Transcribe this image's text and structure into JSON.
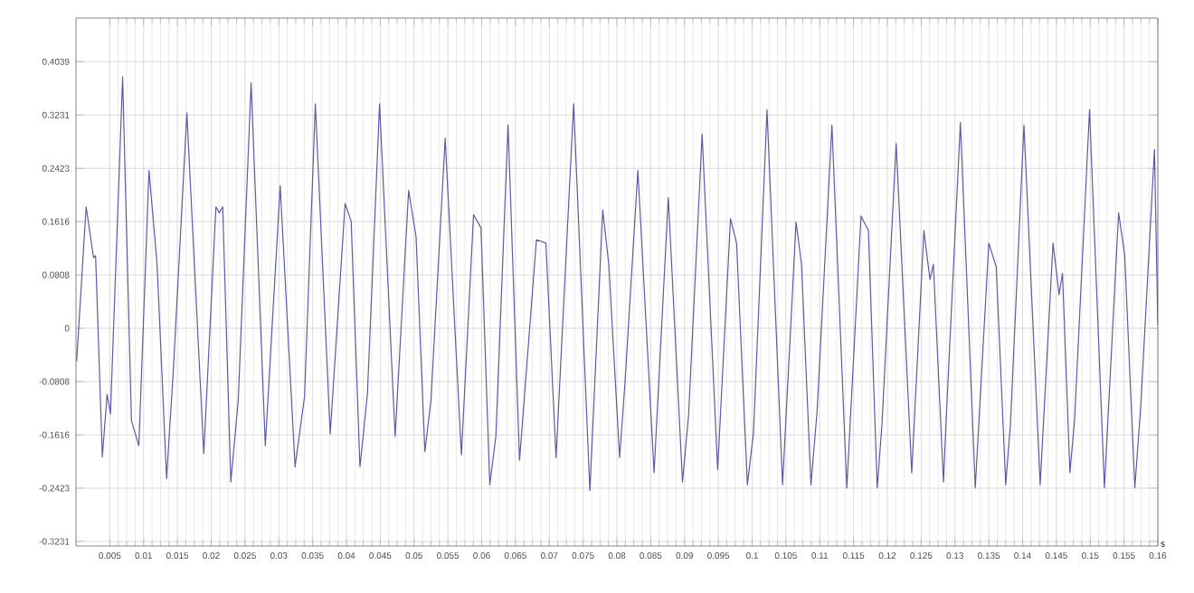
{
  "chart_data": {
    "type": "line",
    "xlabel": "s",
    "xlim": [
      0,
      0.16
    ],
    "ylim": [
      -0.33,
      0.47
    ],
    "xticks": [
      0.005,
      0.01,
      0.015,
      0.02,
      0.025,
      0.03,
      0.035,
      0.04,
      0.045,
      0.05,
      0.055,
      0.06,
      0.065,
      0.07,
      0.075,
      0.08,
      0.085,
      0.09,
      0.095,
      0.1,
      0.105,
      0.11,
      0.115,
      0.12,
      0.125,
      0.13,
      0.135,
      0.14,
      0.145,
      0.15,
      0.155,
      0.16
    ],
    "yticks": [
      -0.3231,
      -0.2423,
      -0.1616,
      -0.0808,
      0,
      0.0808,
      0.1616,
      0.2423,
      0.3231,
      0.4039
    ],
    "grid": true,
    "marker": "none",
    "line_style": "solid",
    "series": [
      {
        "color": "#5a5aa8",
        "x": [
          0.0001,
          0.0015,
          0.0026,
          0.0029,
          0.0039,
          0.0046,
          0.0051,
          0.0069,
          0.0082,
          0.0093,
          0.0108,
          0.012,
          0.0134,
          0.0144,
          0.0164,
          0.0189,
          0.0207,
          0.0212,
          0.0217,
          0.0229,
          0.024,
          0.0259,
          0.028,
          0.0302,
          0.0324,
          0.0338,
          0.0354,
          0.0376,
          0.0398,
          0.0407,
          0.042,
          0.0431,
          0.0449,
          0.0472,
          0.0492,
          0.0503,
          0.0516,
          0.0525,
          0.0546,
          0.057,
          0.0588,
          0.0599,
          0.0612,
          0.0621,
          0.0639,
          0.0656,
          0.0681,
          0.0695,
          0.071,
          0.0736,
          0.076,
          0.0779,
          0.0788,
          0.0804,
          0.0812,
          0.0831,
          0.0855,
          0.0876,
          0.0897,
          0.0906,
          0.0926,
          0.0949,
          0.0968,
          0.0977,
          0.0993,
          0.1002,
          0.1022,
          0.1045,
          0.1065,
          0.1073,
          0.1087,
          0.1096,
          0.1118,
          0.114,
          0.1161,
          0.1172,
          0.1185,
          0.1192,
          0.1213,
          0.1236,
          0.1254,
          0.1263,
          0.1268,
          0.1283,
          0.1287,
          0.1308,
          0.133,
          0.135,
          0.1361,
          0.1375,
          0.1382,
          0.1402,
          0.1426,
          0.1445,
          0.1454,
          0.1459,
          0.147,
          0.1477,
          0.1499,
          0.1521,
          0.1542,
          0.1551,
          0.1566,
          0.1575,
          0.1595,
          0.16
        ],
        "values": [
          -0.05,
          0.184,
          0.107,
          0.11,
          -0.195,
          -0.1,
          -0.13,
          0.381,
          -0.14,
          -0.178,
          0.239,
          0.096,
          -0.228,
          -0.063,
          0.326,
          -0.19,
          0.184,
          0.175,
          0.184,
          -0.233,
          -0.109,
          0.372,
          -0.178,
          0.216,
          -0.21,
          -0.104,
          0.34,
          -0.16,
          0.189,
          0.162,
          -0.21,
          -0.1,
          0.34,
          -0.164,
          0.209,
          0.138,
          -0.187,
          -0.109,
          0.288,
          -0.192,
          0.172,
          0.152,
          -0.237,
          -0.164,
          0.308,
          -0.2,
          0.134,
          0.129,
          -0.196,
          0.34,
          -0.246,
          0.179,
          0.097,
          -0.196,
          -0.082,
          0.239,
          -0.219,
          0.198,
          -0.233,
          -0.132,
          0.294,
          -0.214,
          0.166,
          0.129,
          -0.237,
          -0.159,
          0.331,
          -0.237,
          0.161,
          0.097,
          -0.237,
          -0.127,
          0.308,
          -0.242,
          0.17,
          0.148,
          -0.242,
          -0.146,
          0.28,
          -0.219,
          0.148,
          0.074,
          0.097,
          -0.233,
          -0.137,
          0.312,
          -0.242,
          0.129,
          0.093,
          -0.237,
          -0.146,
          0.308,
          -0.237,
          0.129,
          0.051,
          0.083,
          -0.219,
          -0.137,
          0.331,
          -0.242,
          0.175,
          0.111,
          -0.242,
          -0.114,
          0.271,
          0.005
        ]
      }
    ]
  }
}
